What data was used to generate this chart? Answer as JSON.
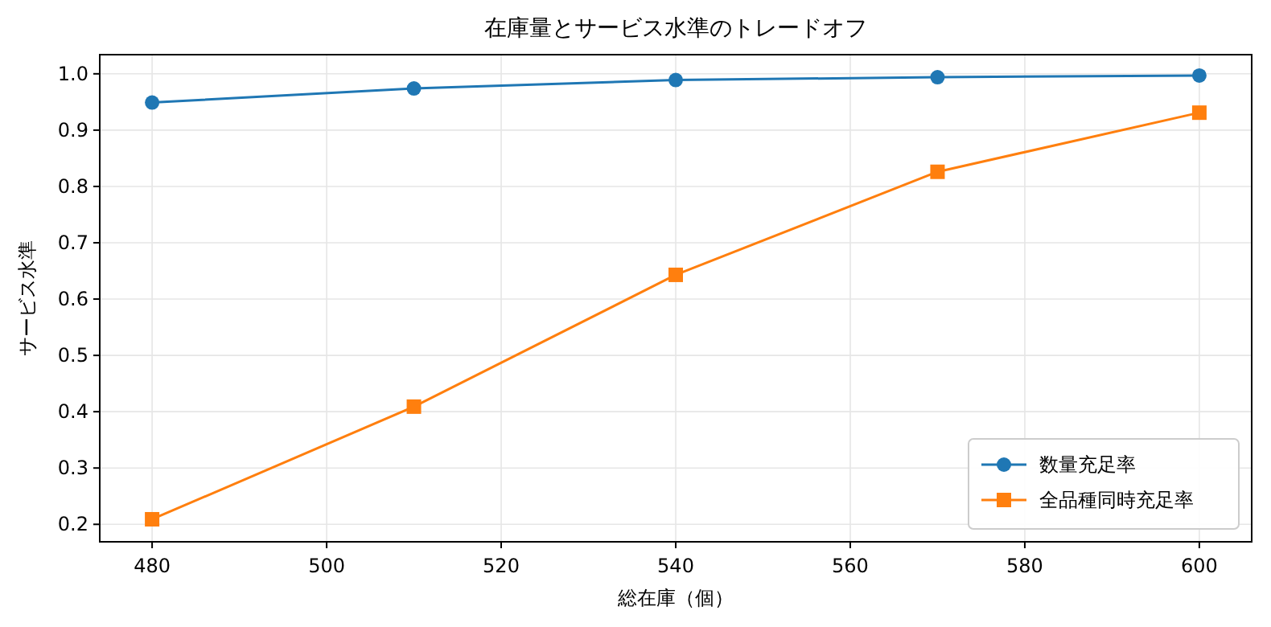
{
  "chart_data": {
    "type": "line",
    "title": "在庫量とサービス水準のトレードオフ",
    "xlabel": "総在庫（個）",
    "ylabel": "サービス水準",
    "x": [
      480,
      510,
      540,
      570,
      600
    ],
    "series": [
      {
        "name": "数量充足率",
        "color": "#1f77b4",
        "marker": "circle",
        "values": [
          0.949,
          0.974,
          0.989,
          0.994,
          0.997
        ]
      },
      {
        "name": "全品種同時充足率",
        "color": "#ff7f0e",
        "marker": "square",
        "values": [
          0.209,
          0.409,
          0.643,
          0.826,
          0.931
        ]
      }
    ],
    "xlim": [
      474,
      606
    ],
    "xticks": [
      480,
      500,
      520,
      540,
      560,
      580,
      600
    ],
    "ylim": [
      0.169,
      1.034
    ],
    "yticks": [
      0.2,
      0.3,
      0.4,
      0.5,
      0.6,
      0.7,
      0.8,
      0.9,
      {
        "value": 1,
        "label": "1.0"
      }
    ],
    "grid": true,
    "legend": "bottom right",
    "line_style": "solid"
  }
}
